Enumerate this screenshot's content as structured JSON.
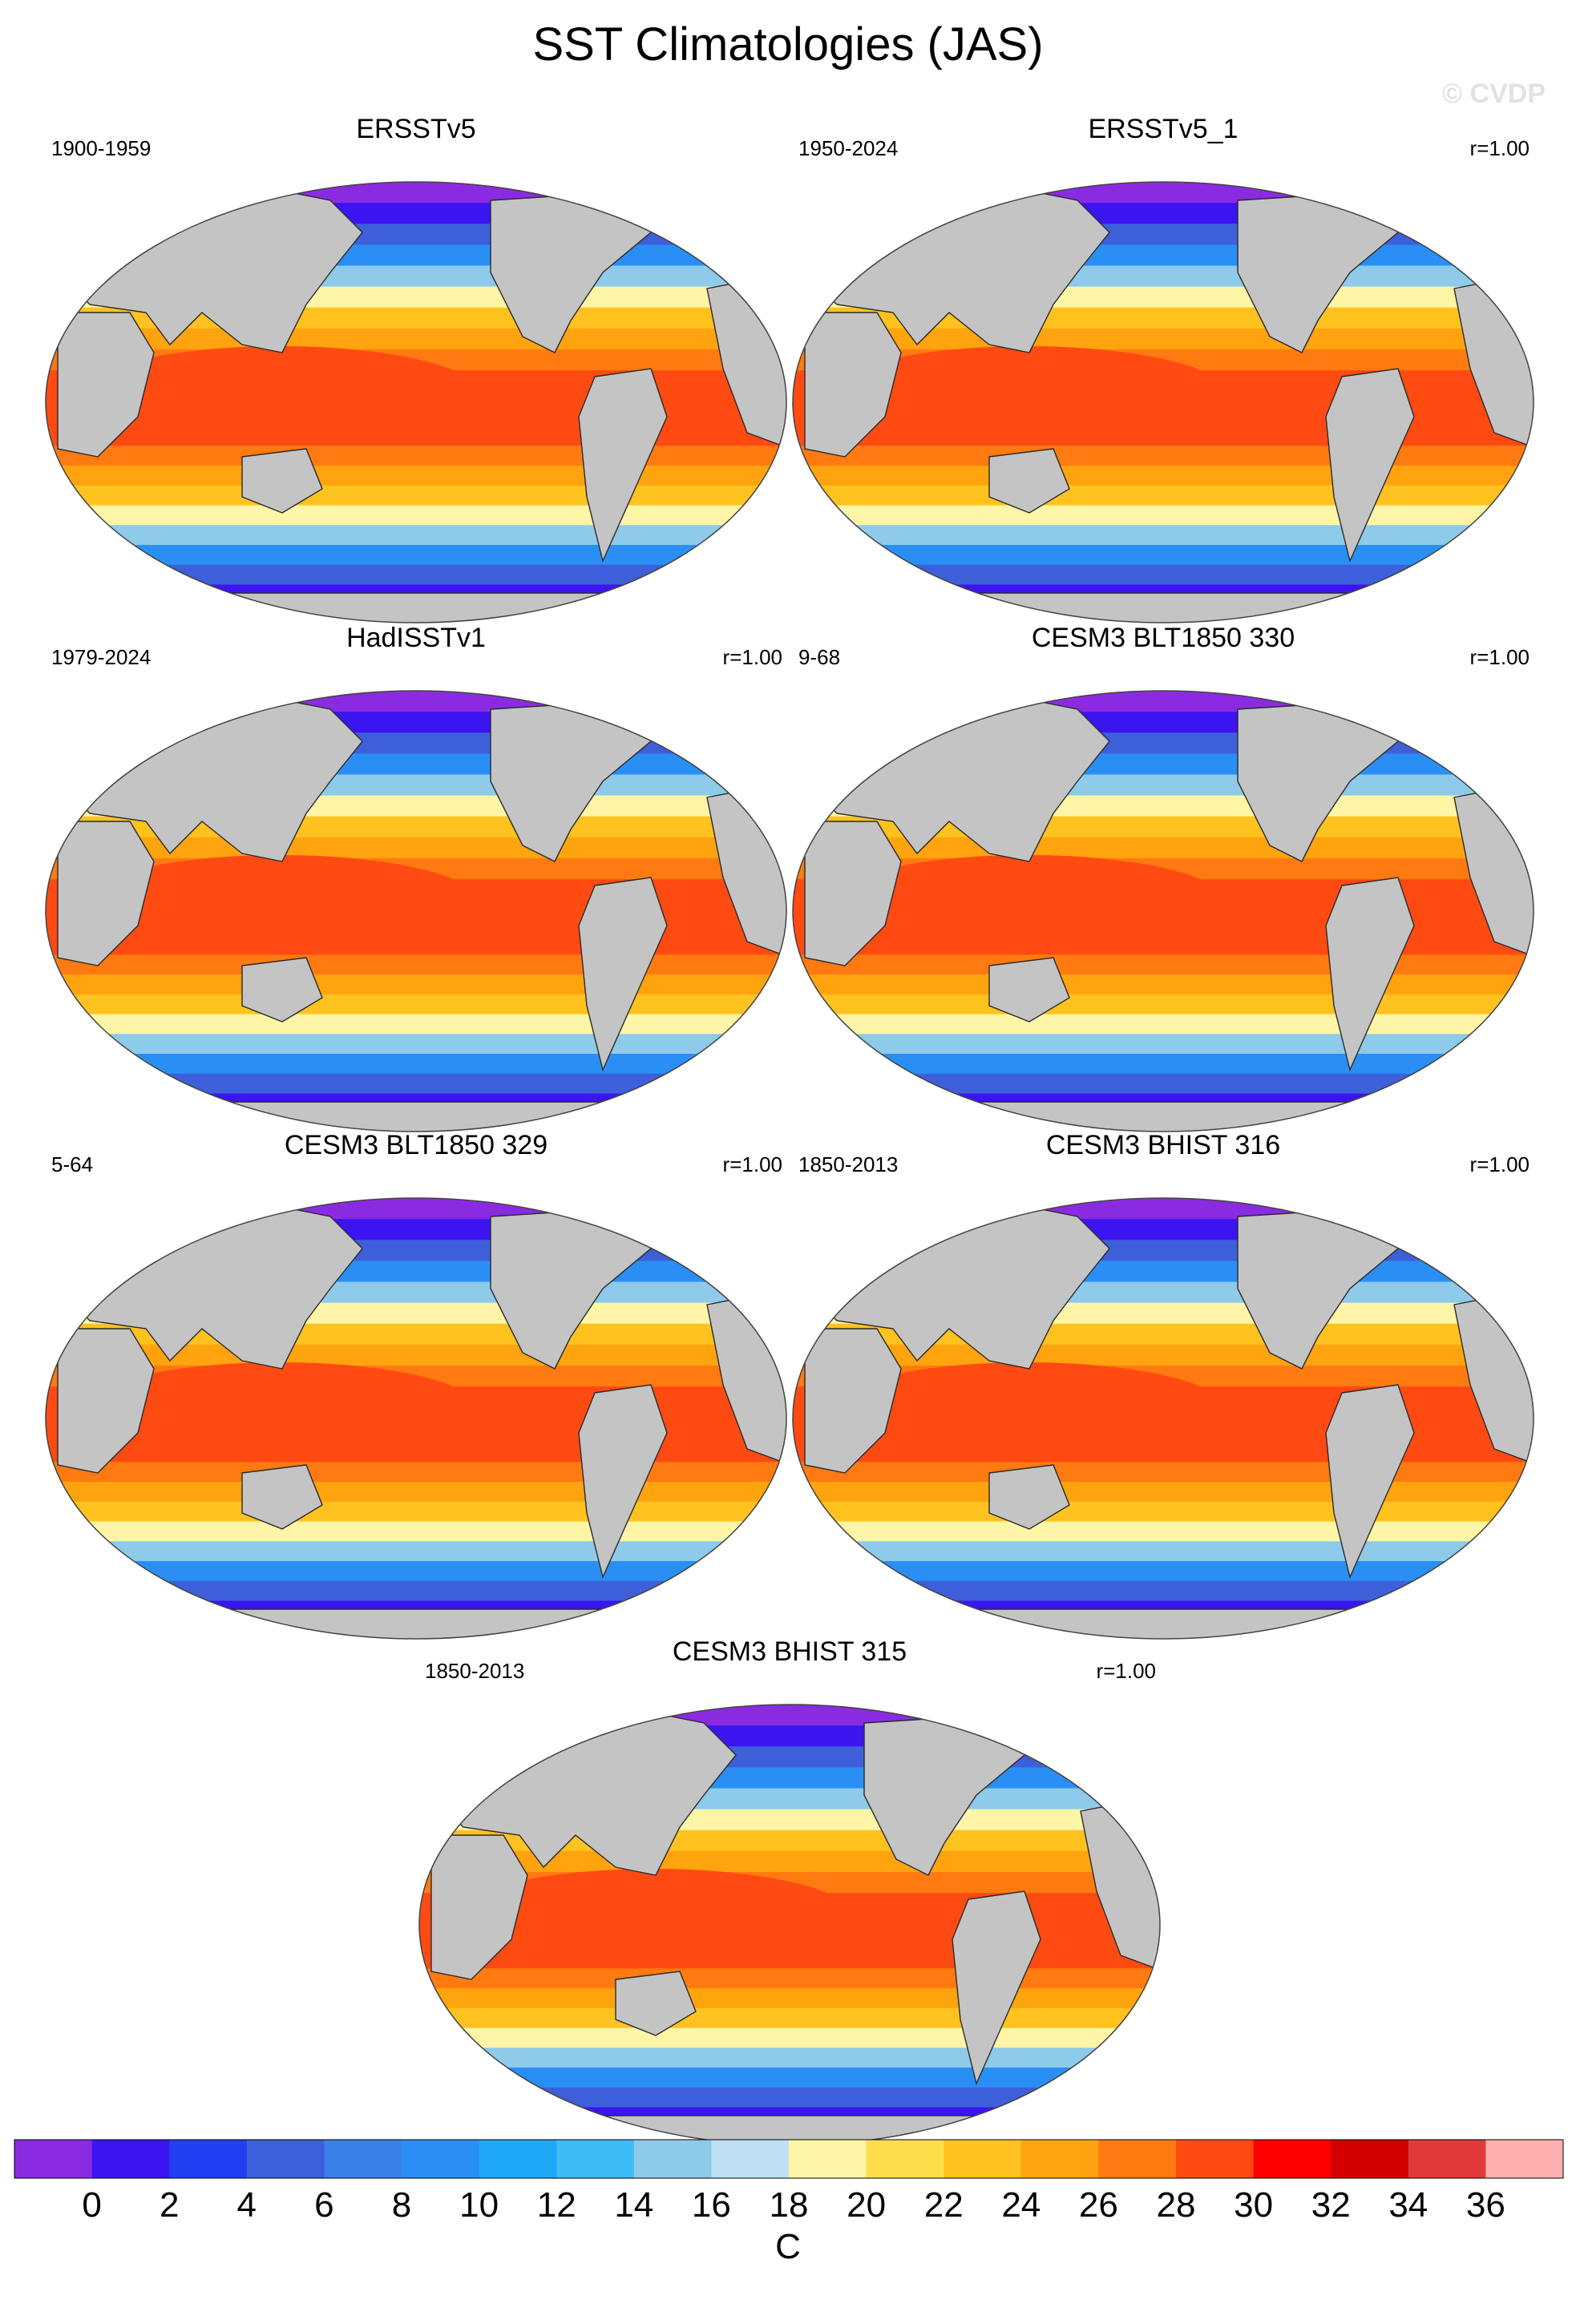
{
  "title": "SST Climatologies (JAS)",
  "watermark": "© CVDP",
  "panels": [
    {
      "name": "ERSSTv5",
      "period": "1900-1959",
      "corr": ""
    },
    {
      "name": "ERSSTv5_1",
      "period": "1950-2024",
      "corr": "r=1.00"
    },
    {
      "name": "HadISSTv1",
      "period": "1979-2024",
      "corr": "r=1.00"
    },
    {
      "name": "CESM3 BLT1850 330",
      "period": "9-68",
      "corr": "r=1.00"
    },
    {
      "name": "CESM3 BLT1850 329",
      "period": "5-64",
      "corr": "r=1.00"
    },
    {
      "name": "CESM3 BHIST 316",
      "period": "1850-2013",
      "corr": "r=1.00"
    },
    {
      "name": "CESM3 BHIST 315",
      "period": "1850-2013",
      "corr": "r=1.00"
    }
  ],
  "colorbar": {
    "unit": "C",
    "tick_labels": [
      "0",
      "2",
      "4",
      "6",
      "8",
      "10",
      "12",
      "14",
      "16",
      "18",
      "20",
      "22",
      "24",
      "26",
      "28",
      "30",
      "32",
      "34",
      "36"
    ],
    "colors": [
      "#8a2be2",
      "#3b14f0",
      "#1f3ff0",
      "#3d5fd9",
      "#3b7fe8",
      "#2a8ff5",
      "#1ea8f7",
      "#3dbcf5",
      "#8ecae9",
      "#bfe0f3",
      "#fff5a6",
      "#ffde4d",
      "#ffc21f",
      "#ffa30f",
      "#ff7a10",
      "#ff4a12",
      "#ff0000",
      "#d20000",
      "#e03a3a",
      "#ffb0b0"
    ]
  },
  "map_colors": {
    "land": "#c4c4c4",
    "coast": "#2a2a2a",
    "bands": [
      "#8a2be2",
      "#3b14f0",
      "#3d5fd9",
      "#2a8ff5",
      "#8ecae9",
      "#fff5a6",
      "#ffc21f",
      "#ffa30f",
      "#ff7a10",
      "#ff4a12"
    ]
  }
}
